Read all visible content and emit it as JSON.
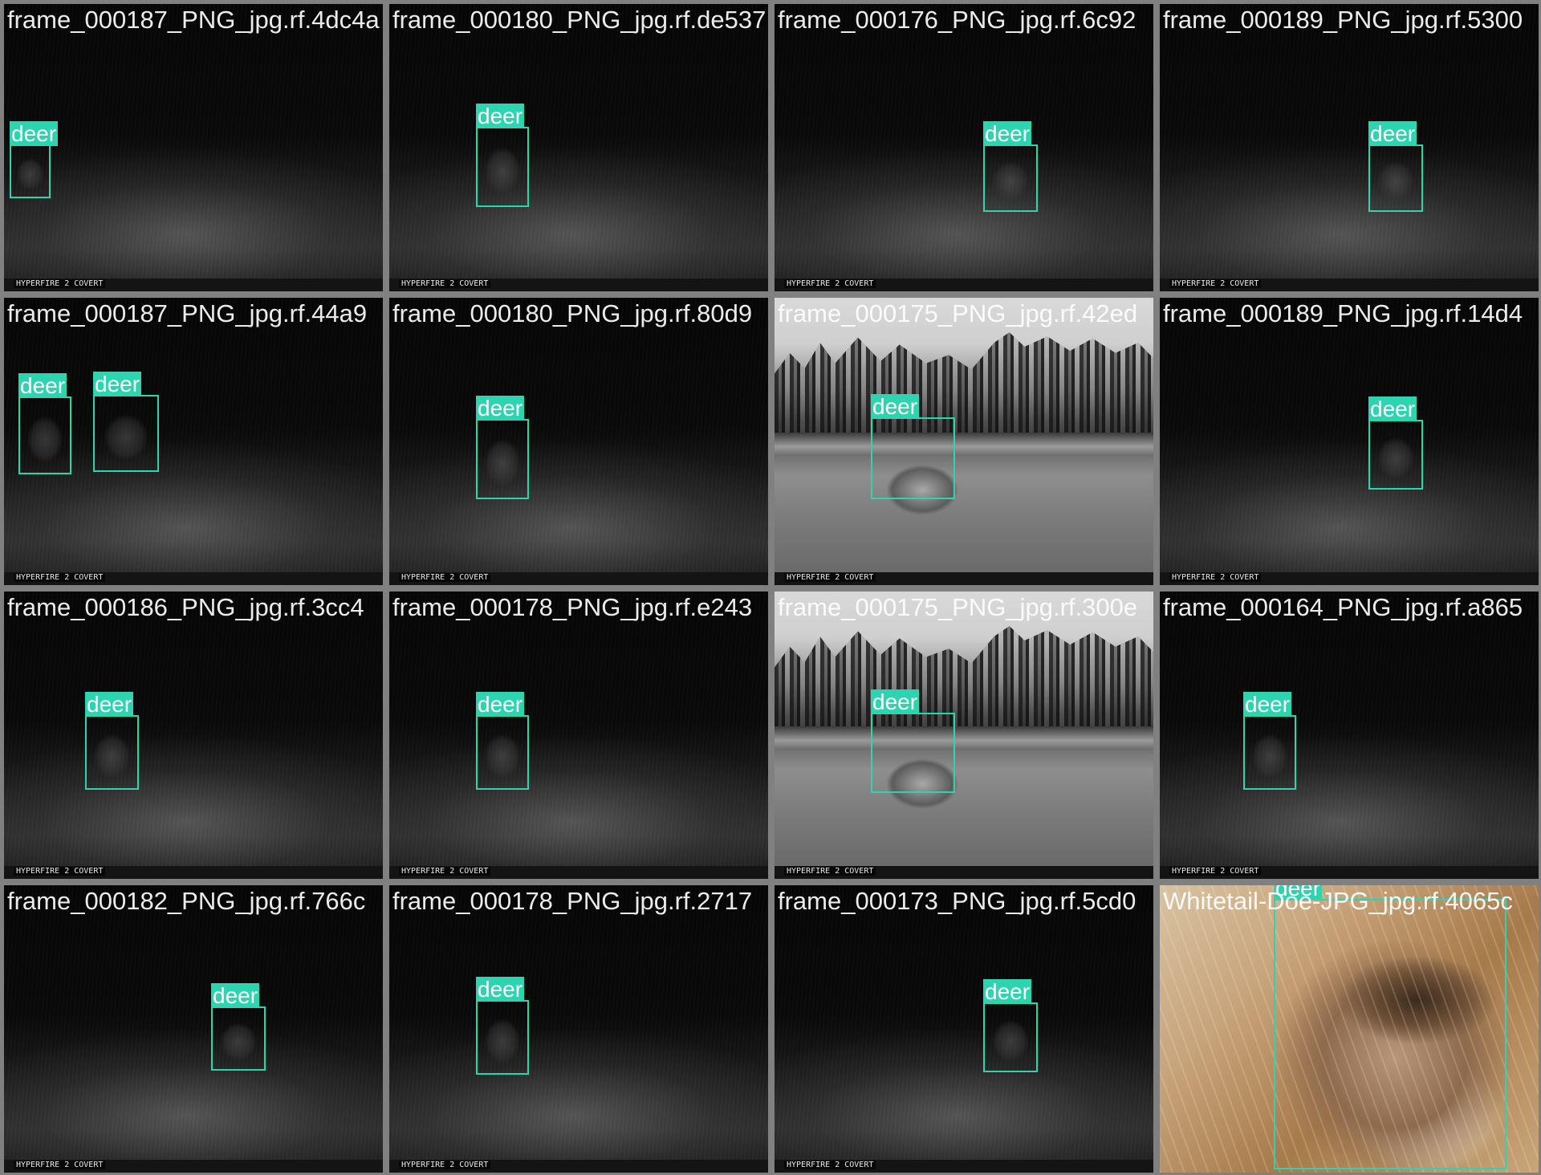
{
  "colors": {
    "box": "#2cd4b0",
    "grid_background": "#808080"
  },
  "tiles": [
    {
      "row": 0,
      "col": 0,
      "filename": "frame_000187_PNG_jpg.rf.4dc4a",
      "scene": "night",
      "stamp": "HYPERFIRE 2 COVERT",
      "detections": [
        {
          "label": "deer"
        }
      ]
    },
    {
      "row": 0,
      "col": 1,
      "filename": "frame_000180_PNG_jpg.rf.de537",
      "scene": "night",
      "stamp": "HYPERFIRE 2 COVERT",
      "detections": [
        {
          "label": "deer"
        }
      ]
    },
    {
      "row": 0,
      "col": 2,
      "filename": "frame_000176_PNG_jpg.rf.6c92",
      "scene": "night",
      "stamp": "HYPERFIRE 2 COVERT",
      "detections": [
        {
          "label": "deer"
        }
      ]
    },
    {
      "row": 0,
      "col": 3,
      "filename": "frame_000189_PNG_jpg.rf.5300",
      "scene": "night",
      "stamp": "HYPERFIRE 2 COVERT",
      "detections": [
        {
          "label": "deer"
        }
      ]
    },
    {
      "row": 1,
      "col": 0,
      "filename": "frame_000187_PNG_jpg.rf.44a9",
      "scene": "night",
      "stamp": "HYPERFIRE 2 COVERT",
      "detections": [
        {
          "label": "deer"
        },
        {
          "label": "deer"
        }
      ]
    },
    {
      "row": 1,
      "col": 1,
      "filename": "frame_000180_PNG_jpg.rf.80d9",
      "scene": "night",
      "stamp": "HYPERFIRE 2 COVERT",
      "detections": [
        {
          "label": "deer"
        }
      ]
    },
    {
      "row": 1,
      "col": 2,
      "filename": "frame_000175_PNG_jpg.rf.42ed",
      "scene": "lake",
      "stamp": "HYPERFIRE 2 COVERT",
      "detections": [
        {
          "label": "deer"
        }
      ]
    },
    {
      "row": 1,
      "col": 3,
      "filename": "frame_000189_PNG_jpg.rf.14d4",
      "scene": "night",
      "stamp": "HYPERFIRE 2 COVERT",
      "detections": [
        {
          "label": "deer"
        }
      ]
    },
    {
      "row": 2,
      "col": 0,
      "filename": "frame_000186_PNG_jpg.rf.3cc4",
      "scene": "night",
      "stamp": "HYPERFIRE 2 COVERT",
      "detections": [
        {
          "label": "deer"
        }
      ]
    },
    {
      "row": 2,
      "col": 1,
      "filename": "frame_000178_PNG_jpg.rf.e243",
      "scene": "night",
      "stamp": "HYPERFIRE 2 COVERT",
      "detections": [
        {
          "label": "deer"
        }
      ]
    },
    {
      "row": 2,
      "col": 2,
      "filename": "frame_000175_PNG_jpg.rf.300e",
      "scene": "lake",
      "stamp": "HYPERFIRE 2 COVERT",
      "detections": [
        {
          "label": "deer"
        }
      ]
    },
    {
      "row": 2,
      "col": 3,
      "filename": "frame_000164_PNG_jpg.rf.a865",
      "scene": "night",
      "stamp": "HYPERFIRE 2 COVERT",
      "detections": [
        {
          "label": "deer"
        }
      ]
    },
    {
      "row": 3,
      "col": 0,
      "filename": "frame_000182_PNG_jpg.rf.766c",
      "scene": "night",
      "stamp": "HYPERFIRE 2 COVERT",
      "detections": [
        {
          "label": "deer"
        }
      ]
    },
    {
      "row": 3,
      "col": 1,
      "filename": "frame_000178_PNG_jpg.rf.2717",
      "scene": "night",
      "stamp": "HYPERFIRE 2 COVERT",
      "detections": [
        {
          "label": "deer"
        }
      ]
    },
    {
      "row": 3,
      "col": 2,
      "filename": "frame_000173_PNG_jpg.rf.5cd0",
      "scene": "night",
      "stamp": "HYPERFIRE 2 COVERT",
      "detections": [
        {
          "label": "deer"
        }
      ]
    },
    {
      "row": 3,
      "col": 3,
      "filename": "Whitetail-Doe-JPG_jpg.rf.4065c",
      "scene": "closeup",
      "stamp": "",
      "detections": [
        {
          "label": "deer"
        }
      ]
    }
  ]
}
